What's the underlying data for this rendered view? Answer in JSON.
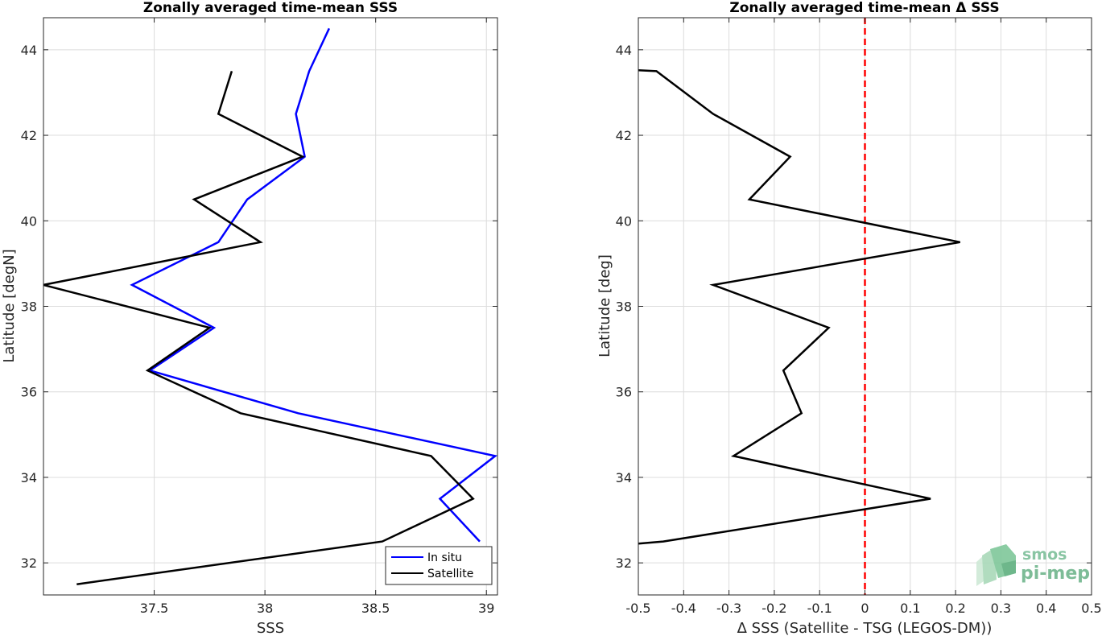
{
  "chart_data": [
    {
      "type": "line",
      "title": "Zonally averaged time-mean SSS",
      "xlabel": "SSS",
      "ylabel": "Latitude [degN]",
      "xlim": [
        37.0,
        39.05
      ],
      "ylim": [
        31.25,
        44.75
      ],
      "xticks": [
        37.5,
        38,
        38.5,
        39
      ],
      "xtick_labels": [
        "37.5",
        "38",
        "38.5",
        "39"
      ],
      "yticks": [
        32,
        34,
        36,
        38,
        40,
        42,
        44
      ],
      "ytick_labels": [
        "32",
        "34",
        "36",
        "38",
        "40",
        "42",
        "44"
      ],
      "grid": true,
      "legend_position": "bottom-right",
      "series": [
        {
          "name": "In situ",
          "color": "#0000ff",
          "x": [
            38.97,
            38.79,
            39.04,
            38.15,
            37.48,
            37.77,
            37.4,
            37.79,
            37.92,
            38.18,
            38.14,
            38.2,
            38.29
          ],
          "y": [
            32.5,
            33.5,
            34.5,
            35.5,
            36.5,
            37.5,
            38.5,
            39.5,
            40.5,
            41.5,
            42.5,
            43.5,
            44.5
          ]
        },
        {
          "name": "Satellite",
          "color": "#000000",
          "x": [
            37.15,
            38.53,
            38.94,
            38.75,
            37.89,
            37.47,
            37.75,
            37.0,
            37.98,
            37.68,
            38.17,
            37.79,
            37.85
          ],
          "y": [
            31.5,
            32.5,
            33.5,
            34.5,
            35.5,
            36.5,
            37.5,
            38.5,
            39.5,
            40.5,
            41.5,
            42.5,
            43.5
          ]
        }
      ]
    },
    {
      "type": "line",
      "title": "Zonally averaged time-mean Δ SSS",
      "xlabel": "Δ SSS (Satellite - TSG (LEGOS-DM))",
      "ylabel": "Latitude [deg]",
      "xlim": [
        -0.5,
        0.5
      ],
      "ylim": [
        31.25,
        44.75
      ],
      "xticks": [
        -0.5,
        -0.4,
        -0.3,
        -0.2,
        -0.1,
        0,
        0.1,
        0.2,
        0.3,
        0.4,
        0.5
      ],
      "xtick_labels": [
        "-0.5",
        "-0.4",
        "-0.3",
        "-0.2",
        "-0.1",
        "0",
        "0.1",
        "0.2",
        "0.3",
        "0.4",
        "0.5"
      ],
      "yticks": [
        32,
        34,
        36,
        38,
        40,
        42,
        44
      ],
      "ytick_labels": [
        "32",
        "34",
        "36",
        "38",
        "40",
        "42",
        "44"
      ],
      "grid": true,
      "reference_line": {
        "x": 0,
        "color": "#ff0000",
        "style": "dashed"
      },
      "series": [
        {
          "color": "#000000",
          "x": [
            -0.5,
            -0.445,
            0.145,
            -0.29,
            -0.14,
            -0.18,
            -0.08,
            -0.335,
            0.21,
            -0.255,
            -0.165,
            -0.335,
            -0.46,
            -0.5
          ],
          "y": [
            32.45,
            32.5,
            33.5,
            34.5,
            35.5,
            36.5,
            37.5,
            38.5,
            39.5,
            40.5,
            41.5,
            42.5,
            43.5,
            43.52
          ]
        }
      ]
    }
  ],
  "logo": {
    "line1": "smos",
    "line2": "pi-mep"
  }
}
